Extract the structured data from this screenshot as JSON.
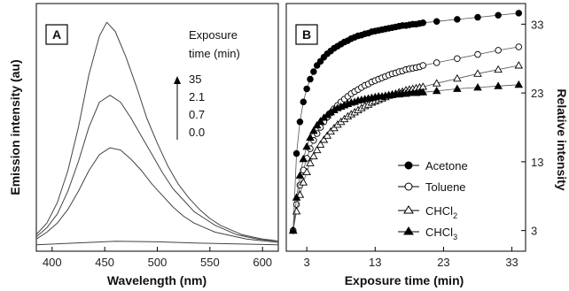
{
  "chart_data": [
    {
      "panel": "A",
      "type": "line",
      "xlabel": "Wavelength (nm)",
      "ylabel": "Emission intensity (au)",
      "xlim": [
        385,
        615
      ],
      "xticks": [
        "400",
        "450",
        "500",
        "550",
        "600"
      ],
      "annotation_title": [
        "Exposure",
        "time (min)"
      ],
      "annotation_values": [
        "35",
        "2.1",
        "0.7",
        "0.0"
      ],
      "series": [
        {
          "name": "35",
          "x": [
            385,
            395,
            405,
            415,
            425,
            435,
            445,
            452,
            460,
            470,
            480,
            490,
            500,
            510,
            520,
            530,
            540,
            550,
            560,
            570,
            580,
            590,
            600,
            610,
            615
          ],
          "y": [
            0.05,
            0.1,
            0.19,
            0.33,
            0.52,
            0.75,
            0.92,
            0.98,
            0.94,
            0.83,
            0.7,
            0.56,
            0.45,
            0.35,
            0.27,
            0.21,
            0.16,
            0.12,
            0.09,
            0.07,
            0.05,
            0.04,
            0.03,
            0.025,
            0.02
          ]
        },
        {
          "name": "2.1",
          "x": [
            385,
            395,
            405,
            415,
            425,
            435,
            445,
            455,
            465,
            475,
            485,
            495,
            505,
            515,
            525,
            535,
            545,
            555,
            565,
            575,
            585,
            595,
            605,
            615
          ],
          "y": [
            0.04,
            0.08,
            0.14,
            0.24,
            0.37,
            0.52,
            0.63,
            0.66,
            0.63,
            0.56,
            0.48,
            0.4,
            0.32,
            0.25,
            0.2,
            0.15,
            0.12,
            0.09,
            0.07,
            0.05,
            0.04,
            0.03,
            0.025,
            0.02
          ]
        },
        {
          "name": "0.7",
          "x": [
            385,
            395,
            405,
            415,
            425,
            435,
            445,
            455,
            465,
            475,
            485,
            495,
            505,
            515,
            525,
            535,
            545,
            555,
            565,
            575,
            585,
            595,
            605,
            615
          ],
          "y": [
            0.03,
            0.06,
            0.1,
            0.16,
            0.24,
            0.33,
            0.4,
            0.43,
            0.42,
            0.38,
            0.33,
            0.27,
            0.22,
            0.17,
            0.13,
            0.1,
            0.08,
            0.06,
            0.05,
            0.04,
            0.03,
            0.025,
            0.02,
            0.015
          ]
        },
        {
          "name": "0.0",
          "x": [
            385,
            420,
            460,
            500,
            540,
            580,
            615
          ],
          "y": [
            0.005,
            0.012,
            0.02,
            0.018,
            0.012,
            0.008,
            0.005
          ]
        }
      ]
    },
    {
      "panel": "B",
      "type": "scatter",
      "xlabel": "Exposure time (min)",
      "ylabel": "Relative intensity",
      "xlim": [
        0,
        35
      ],
      "ylim": [
        0,
        36
      ],
      "xticks": [
        3,
        13,
        23,
        33
      ],
      "yticks": [
        3,
        13,
        23,
        33
      ],
      "series": [
        {
          "name": "Acetone",
          "marker": "filled-circle",
          "x": [
            1,
            1.5,
            2,
            2.5,
            3,
            3.5,
            4,
            4.5,
            5,
            5.5,
            6,
            6.5,
            7,
            7.5,
            8,
            8.5,
            9,
            9.5,
            10,
            10.5,
            11,
            11.5,
            12,
            12.5,
            13,
            13.5,
            14,
            14.5,
            15,
            15.5,
            16,
            16.5,
            17,
            17.5,
            18,
            18.5,
            19,
            19.5,
            20,
            22,
            25,
            28,
            31,
            34
          ],
          "y": [
            3,
            14.2,
            18.8,
            21.7,
            23.6,
            25,
            26.1,
            27,
            27.6,
            28.2,
            28.7,
            29.1,
            29.5,
            29.8,
            30.1,
            30.4,
            30.6,
            30.9,
            31.1,
            31.3,
            31.4,
            31.6,
            31.7,
            31.9,
            32,
            32.1,
            32.2,
            32.3,
            32.4,
            32.5,
            32.6,
            32.7,
            32.8,
            32.8,
            32.9,
            33,
            33,
            33.1,
            33.2,
            33.4,
            33.7,
            34,
            34.3,
            34.6
          ]
        },
        {
          "name": "Toluene",
          "marker": "open-circle",
          "x": [
            1,
            1.5,
            2,
            2.5,
            3,
            3.5,
            4,
            4.5,
            5,
            5.5,
            6,
            6.5,
            7,
            7.5,
            8,
            8.5,
            9,
            9.5,
            10,
            10.5,
            11,
            11.5,
            12,
            12.5,
            13,
            13.5,
            14,
            14.5,
            15,
            15.5,
            16,
            16.5,
            17,
            17.5,
            18,
            18.5,
            19,
            19.5,
            20,
            22,
            25,
            28,
            31,
            34
          ],
          "y": [
            3,
            6.8,
            9.6,
            11.8,
            13.5,
            14.9,
            16.1,
            17.1,
            18,
            18.8,
            19.5,
            20.1,
            20.7,
            21.2,
            21.7,
            22.1,
            22.5,
            22.9,
            23.2,
            23.5,
            23.8,
            24.1,
            24.3,
            24.6,
            24.8,
            25,
            25.2,
            25.4,
            25.6,
            25.8,
            25.9,
            26.1,
            26.2,
            26.4,
            26.5,
            26.6,
            26.7,
            26.8,
            27,
            27.4,
            28,
            28.6,
            29.2,
            29.7
          ]
        },
        {
          "name": "CHCl2",
          "sub": "2",
          "marker": "open-triangle",
          "x": [
            1,
            1.5,
            2,
            2.5,
            3,
            3.5,
            4,
            4.5,
            5,
            5.5,
            6,
            6.5,
            7,
            7.5,
            8,
            8.5,
            9,
            9.5,
            10,
            10.5,
            11,
            11.5,
            12,
            12.5,
            13,
            13.5,
            14,
            14.5,
            15,
            15.5,
            16,
            16.5,
            17,
            17.5,
            18,
            18.5,
            19,
            19.5,
            20,
            22,
            25,
            28,
            31,
            34
          ],
          "y": [
            3,
            5.8,
            8.2,
            10,
            11.5,
            12.8,
            13.8,
            14.7,
            15.5,
            16.2,
            16.8,
            17.4,
            17.9,
            18.4,
            18.8,
            19.2,
            19.6,
            19.9,
            20.2,
            20.5,
            20.8,
            21.1,
            21.3,
            21.6,
            21.8,
            22,
            22.2,
            22.4,
            22.6,
            22.8,
            22.9,
            23.1,
            23.2,
            23.4,
            23.5,
            23.6,
            23.7,
            23.8,
            23.9,
            24.4,
            25.1,
            25.8,
            26.4,
            27
          ]
        },
        {
          "name": "CHCl3",
          "sub": "3",
          "marker": "filled-triangle",
          "x": [
            1,
            1.5,
            2,
            2.5,
            3,
            3.5,
            4,
            4.5,
            5,
            5.5,
            6,
            6.5,
            7,
            7.5,
            8,
            8.5,
            9,
            9.5,
            10,
            10.5,
            11,
            11.5,
            12,
            12.5,
            13,
            13.5,
            14,
            14.5,
            15,
            15.5,
            16,
            16.5,
            17,
            17.5,
            18,
            18.5,
            19,
            19.5,
            20,
            22,
            25,
            28,
            31,
            34
          ],
          "y": [
            3,
            7.8,
            11,
            13.4,
            15.2,
            16.5,
            17.5,
            18.3,
            18.9,
            19.4,
            19.8,
            20.2,
            20.5,
            20.8,
            21,
            21.2,
            21.4,
            21.6,
            21.7,
            21.9,
            22,
            22.1,
            22.2,
            22.3,
            22.4,
            22.5,
            22.5,
            22.6,
            22.7,
            22.7,
            22.8,
            22.8,
            22.9,
            22.9,
            23,
            23,
            23,
            23.1,
            23.1,
            23.3,
            23.6,
            23.8,
            24,
            24.2
          ]
        }
      ]
    }
  ],
  "panelA": {
    "letter": "A",
    "xlabel": "Wavelength (nm)",
    "ylabel": "Emission intensity (au)",
    "annotation_title_1": "Exposure",
    "annotation_title_2": "time (min)",
    "annotation_v1": "35",
    "annotation_v2": "2.1",
    "annotation_v3": "0.7",
    "annotation_v4": "0.0"
  },
  "panelB": {
    "letter": "B",
    "xlabel": "Exposure time (min)",
    "ylabel": "Relative intensity",
    "legend": {
      "acetone": "Acetone",
      "toluene": "Toluene",
      "chcl2_base": "CHCl",
      "chcl2_sub": "2",
      "chcl3_base": "CHCl",
      "chcl3_sub": "3"
    }
  }
}
